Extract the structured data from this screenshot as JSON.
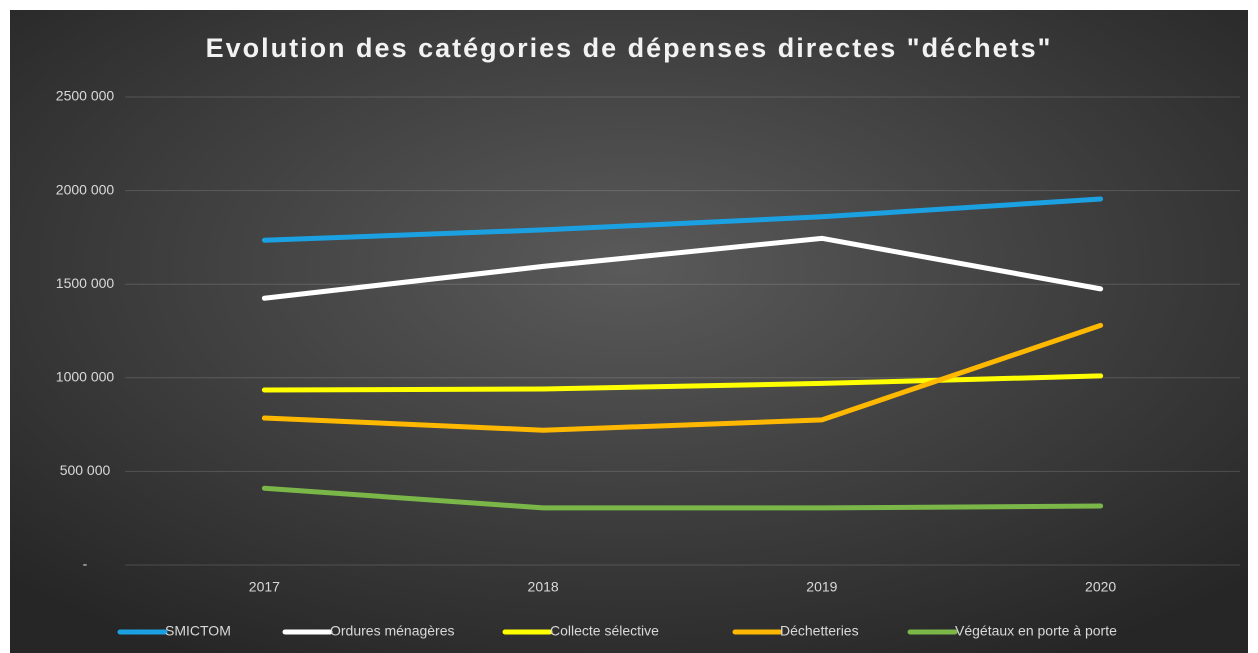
{
  "chart_data": {
    "type": "line",
    "title": "Evolution des catégories de dépenses directes \"déchets\"",
    "categories": [
      "2017",
      "2018",
      "2019",
      "2020"
    ],
    "series": [
      {
        "name": "SMICTOM",
        "color": "#1ba1e2",
        "values": [
          1735000,
          1790000,
          1860000,
          1955000
        ]
      },
      {
        "name": "Ordures ménagères",
        "color": "#ffffff",
        "values": [
          1425000,
          1595000,
          1745000,
          1475000
        ]
      },
      {
        "name": "Collecte sélective",
        "color": "#ffff00",
        "values": [
          935000,
          940000,
          970000,
          1010000
        ]
      },
      {
        "name": "Déchetteries",
        "color": "#ffb800",
        "values": [
          785000,
          720000,
          775000,
          1280000
        ]
      },
      {
        "name": "Végétaux en porte à porte",
        "color": "#7ab648",
        "values": [
          410000,
          305000,
          305000,
          315000
        ]
      }
    ],
    "ylim": [
      0,
      2500000
    ],
    "yticks": [
      {
        "value": 0,
        "label": "-"
      },
      {
        "value": 500000,
        "label": "500 000"
      },
      {
        "value": 1000000,
        "label": "1000 000"
      },
      {
        "value": 1500000,
        "label": "1500 000"
      },
      {
        "value": 2000000,
        "label": "2000 000"
      },
      {
        "value": 2500000,
        "label": "2500 000"
      }
    ],
    "grid": true,
    "legend": "bottom"
  }
}
